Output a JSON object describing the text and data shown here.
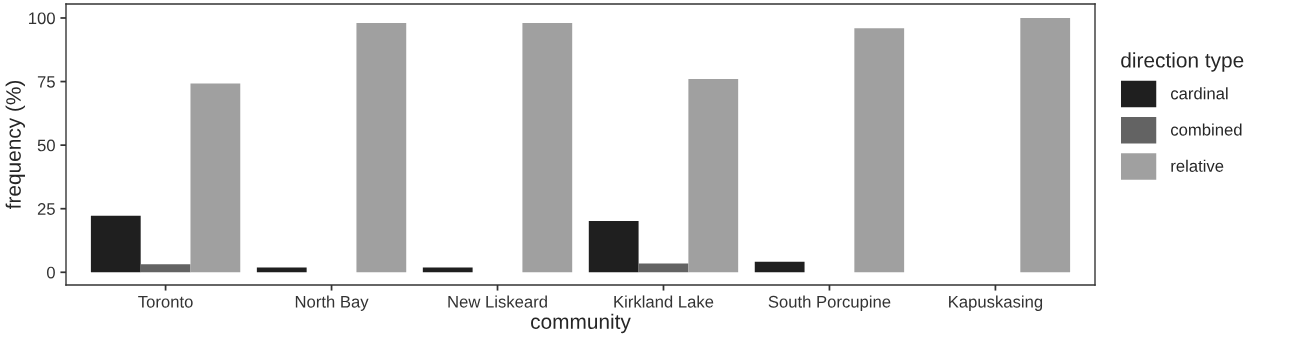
{
  "chart_data": {
    "type": "bar",
    "xlabel": "community",
    "ylabel": "frequency (%)",
    "legend_title": "direction type",
    "categories": [
      "Toronto",
      "North Bay",
      "New Liskeard",
      "Kirkland Lake",
      "South Porcupine",
      "Kapuskasing"
    ],
    "series": [
      {
        "name": "cardinal",
        "color": "#1f1f1f",
        "values": [
          22.2,
          1.9,
          1.9,
          20.2,
          4.1,
          null
        ]
      },
      {
        "name": "combined",
        "color": "#636363",
        "values": [
          3.2,
          null,
          null,
          3.5,
          null,
          null
        ]
      },
      {
        "name": "relative",
        "color": "#a0a0a0",
        "values": [
          74.2,
          98,
          98,
          76,
          96,
          100
        ]
      }
    ],
    "ylim": [
      -5,
      105.5
    ],
    "yticks": [
      0,
      25,
      50,
      75,
      100
    ],
    "grid": false,
    "legend": "right"
  }
}
